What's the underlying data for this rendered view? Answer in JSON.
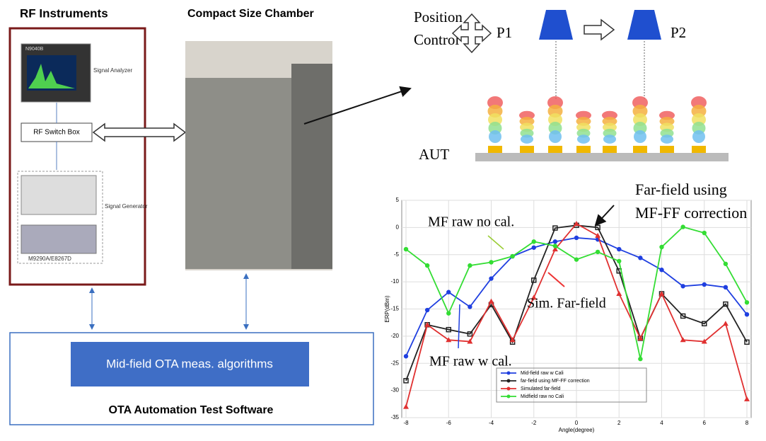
{
  "diagram": {
    "rf_title": "RF Instruments",
    "chamber_title": "Compact Size Chamber",
    "analyzer_model": "N9040B",
    "analyzer_label": "Signal Analyzer",
    "switch_box": "RF Switch Box",
    "generator_label": "Signal Generator",
    "generator_model": "M9290A/E8267D",
    "position_control": [
      "Position",
      "Control"
    ],
    "p1": "P1",
    "p2": "P2",
    "aut": "AUT",
    "algorithm": "Mid-field OTA meas. algorithms",
    "software": "OTA Automation Test Software"
  },
  "chart_data": {
    "type": "line",
    "x_label": "Angle(degree)",
    "y_label": "ERP(dBm)",
    "annotations": [
      "Far-field using",
      "MF-FF correction",
      "MF raw no cal.",
      "Sim. Far-field",
      "MF raw w cal."
    ],
    "x": [
      -8,
      -7,
      -6,
      -5,
      -4,
      -3,
      -2,
      -1,
      0,
      1,
      2,
      3,
      4,
      5,
      6,
      7,
      8
    ],
    "xlim": [
      -8,
      8
    ],
    "xticks": [
      -8,
      -6,
      -4,
      -2,
      0,
      2,
      4,
      6,
      8
    ],
    "ylim": [
      -35,
      5
    ],
    "yticks": [
      5,
      0,
      -5,
      -10,
      -15,
      -20,
      -25,
      -30,
      -35
    ],
    "grid": true,
    "series": [
      {
        "name": "Mid-field raw w Cali",
        "color": "#1f3fe0",
        "marker": "circle",
        "values": [
          -23.7,
          -15.2,
          -11.9,
          -14.6,
          -9.4,
          -5.3,
          -3.7,
          -2.6,
          -1.9,
          -2.2,
          -4,
          -5.6,
          -7.8,
          -10.8,
          -10.5,
          -11,
          -16
        ]
      },
      {
        "name": "far-field using MF-FF correction",
        "color": "#222222",
        "marker": "square",
        "values": [
          -28.2,
          -17.9,
          -18.8,
          -19.6,
          -14.2,
          -21.1,
          -9.7,
          -0.1,
          0.4,
          0,
          -8,
          -20.4,
          -12.2,
          -16.3,
          -17.7,
          -14.1,
          -21.1
        ]
      },
      {
        "name": "Simulated far-field",
        "color": "#e03030",
        "marker": "triangle",
        "values": [
          -33,
          -17.9,
          -20.7,
          -21,
          -13.6,
          -20.7,
          -12.9,
          -4,
          0.7,
          -1.5,
          -12.2,
          -20.4,
          -12.2,
          -20.7,
          -21,
          -17.7,
          -31.6
        ]
      },
      {
        "name": "Midfield raw no Cali",
        "color": "#33dd33",
        "marker": "circle",
        "values": [
          -4,
          -7,
          -15.8,
          -7,
          -6.4,
          -5.3,
          -2.6,
          -3.4,
          -5.9,
          -4.5,
          -6.2,
          -24.2,
          -3.6,
          0.1,
          -1,
          -6.7,
          -13.8
        ]
      }
    ]
  }
}
